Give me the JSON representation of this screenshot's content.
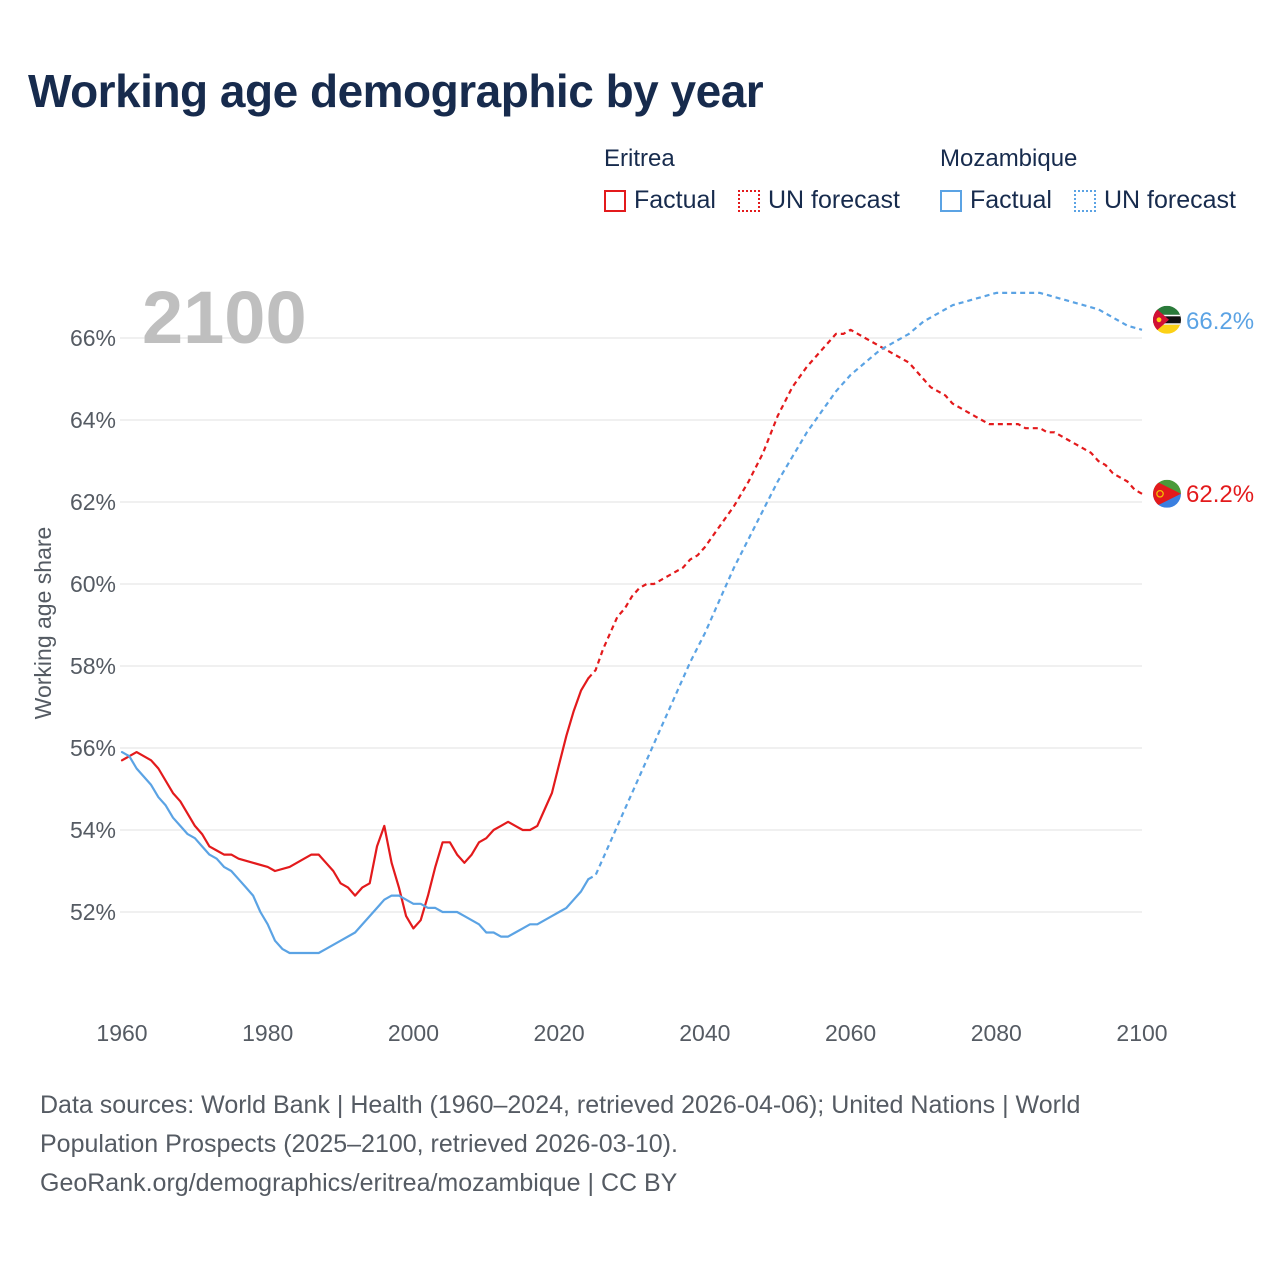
{
  "title": "Working age demographic by year",
  "legend": {
    "groups": [
      {
        "name": "Eritrea",
        "factual_label": "Factual",
        "forecast_label": "UN forecast",
        "color": "#e31a1c"
      },
      {
        "name": "Mozambique",
        "factual_label": "Factual",
        "forecast_label": "UN forecast",
        "color": "#5ba3e4"
      }
    ]
  },
  "year_watermark": "2100",
  "footer": {
    "line1": "Data sources: World Bank | Health (1960–2024, retrieved 2026-04-06); United Nations | World",
    "line2": "Population Prospects (2025–2100, retrieved 2026-03-10).",
    "line3": "GeoRank.org/demographics/eritrea/mozambique | CC BY"
  },
  "colors": {
    "eritrea": "#e31a1c",
    "mozambique": "#5ba3e4",
    "grid": "#e6e6e6",
    "axis_text": "#555b63",
    "watermark": "#bfbfbf"
  },
  "chart_data": {
    "type": "line",
    "title": "Working age demographic by year",
    "xlabel": "",
    "ylabel": "Working age share",
    "xlim": [
      1960,
      2100
    ],
    "ylim": [
      50,
      67.5
    ],
    "x_ticks": [
      1960,
      1980,
      2000,
      2020,
      2040,
      2060,
      2080,
      2100
    ],
    "x_tick_labels": [
      "1960",
      "1980",
      "2000",
      "2020",
      "2040",
      "2060",
      "2080",
      "2100"
    ],
    "y_ticks": [
      52,
      54,
      56,
      58,
      60,
      62,
      64,
      66
    ],
    "y_tick_labels": [
      "52%",
      "54%",
      "56%",
      "58%",
      "60%",
      "62%",
      "64%",
      "66%"
    ],
    "grid": true,
    "series": [
      {
        "name": "Eritrea",
        "segment": "Factual",
        "style": "solid",
        "x": [
          1960,
          1962,
          1964,
          1965,
          1967,
          1968,
          1970,
          1971,
          1972,
          1973,
          1974,
          1975,
          1976,
          1978,
          1980,
          1981,
          1983,
          1985,
          1986,
          1987,
          1988,
          1989,
          1990,
          1991,
          1992,
          1993,
          1994,
          1995,
          1996,
          1997,
          1998,
          1999,
          2000,
          2001,
          2002,
          2003,
          2004,
          2005,
          2006,
          2007,
          2008,
          2009,
          2010,
          2011,
          2012,
          2013,
          2014,
          2015,
          2016,
          2017,
          2018,
          2019,
          2020,
          2021,
          2022,
          2023,
          2024
        ],
        "y": [
          55.7,
          55.9,
          55.7,
          55.5,
          54.9,
          54.7,
          54.1,
          53.9,
          53.6,
          53.5,
          53.4,
          53.4,
          53.3,
          53.2,
          53.1,
          53.0,
          53.1,
          53.3,
          53.4,
          53.4,
          53.2,
          53.0,
          52.7,
          52.6,
          52.4,
          52.6,
          52.7,
          53.6,
          54.1,
          53.2,
          52.6,
          51.9,
          51.6,
          51.8,
          52.4,
          53.1,
          53.7,
          53.7,
          53.4,
          53.2,
          53.4,
          53.7,
          53.8,
          54.0,
          54.1,
          54.2,
          54.1,
          54.0,
          54.0,
          54.1,
          54.5,
          54.9,
          55.6,
          56.3,
          56.9,
          57.4,
          57.7
        ]
      },
      {
        "name": "Eritrea",
        "segment": "UN forecast",
        "style": "dashed",
        "x": [
          2024,
          2025,
          2026,
          2027,
          2028,
          2029,
          2030,
          2031,
          2032,
          2033,
          2034,
          2035,
          2036,
          2037,
          2038,
          2039,
          2040,
          2042,
          2044,
          2046,
          2048,
          2050,
          2052,
          2054,
          2056,
          2058,
          2059,
          2060,
          2061,
          2062,
          2063,
          2064,
          2065,
          2066,
          2067,
          2068,
          2069,
          2070,
          2071,
          2072,
          2073,
          2074,
          2075,
          2076,
          2077,
          2078,
          2079,
          2080,
          2081,
          2082,
          2083,
          2084,
          2085,
          2086,
          2087,
          2088,
          2089,
          2090,
          2091,
          2092,
          2093,
          2094,
          2095,
          2096,
          2097,
          2098,
          2099,
          2100
        ],
        "y": [
          57.7,
          57.9,
          58.4,
          58.8,
          59.2,
          59.4,
          59.7,
          59.9,
          60.0,
          60.0,
          60.1,
          60.2,
          60.3,
          60.4,
          60.6,
          60.7,
          60.9,
          61.4,
          61.9,
          62.5,
          63.2,
          64.1,
          64.8,
          65.3,
          65.7,
          66.1,
          66.1,
          66.2,
          66.1,
          66.0,
          65.9,
          65.8,
          65.7,
          65.6,
          65.5,
          65.4,
          65.2,
          65.0,
          64.8,
          64.7,
          64.6,
          64.4,
          64.3,
          64.2,
          64.1,
          64.0,
          63.9,
          63.9,
          63.9,
          63.9,
          63.9,
          63.8,
          63.8,
          63.8,
          63.7,
          63.7,
          63.6,
          63.5,
          63.4,
          63.3,
          63.2,
          63.0,
          62.9,
          62.7,
          62.6,
          62.5,
          62.3,
          62.2
        ]
      },
      {
        "name": "Mozambique",
        "segment": "Factual",
        "style": "solid",
        "x": [
          1960,
          1961,
          1962,
          1964,
          1965,
          1966,
          1967,
          1968,
          1969,
          1970,
          1971,
          1972,
          1973,
          1974,
          1975,
          1976,
          1977,
          1978,
          1979,
          1980,
          1981,
          1982,
          1983,
          1985,
          1986,
          1987,
          1988,
          1990,
          1992,
          1994,
          1996,
          1997,
          1998,
          1999,
          2000,
          2001,
          2002,
          2003,
          2004,
          2005,
          2006,
          2007,
          2008,
          2009,
          2010,
          2011,
          2012,
          2013,
          2014,
          2015,
          2016,
          2017,
          2018,
          2019,
          2020,
          2021,
          2022,
          2023,
          2024
        ],
        "y": [
          55.9,
          55.8,
          55.5,
          55.1,
          54.8,
          54.6,
          54.3,
          54.1,
          53.9,
          53.8,
          53.6,
          53.4,
          53.3,
          53.1,
          53.0,
          52.8,
          52.6,
          52.4,
          52.0,
          51.7,
          51.3,
          51.1,
          51.0,
          51.0,
          51.0,
          51.0,
          51.1,
          51.3,
          51.5,
          51.9,
          52.3,
          52.4,
          52.4,
          52.3,
          52.2,
          52.2,
          52.1,
          52.1,
          52.0,
          52.0,
          52.0,
          51.9,
          51.8,
          51.7,
          51.5,
          51.5,
          51.4,
          51.4,
          51.5,
          51.6,
          51.7,
          51.7,
          51.8,
          51.9,
          52.0,
          52.1,
          52.3,
          52.5,
          52.8
        ]
      },
      {
        "name": "Mozambique",
        "segment": "UN forecast",
        "style": "dashed",
        "x": [
          2024,
          2025,
          2026,
          2028,
          2030,
          2032,
          2034,
          2036,
          2038,
          2040,
          2042,
          2044,
          2046,
          2048,
          2050,
          2052,
          2054,
          2056,
          2058,
          2060,
          2062,
          2064,
          2066,
          2068,
          2070,
          2072,
          2074,
          2076,
          2078,
          2080,
          2082,
          2084,
          2086,
          2088,
          2090,
          2092,
          2094,
          2096,
          2098,
          2100
        ],
        "y": [
          52.8,
          52.9,
          53.3,
          54.1,
          54.9,
          55.7,
          56.5,
          57.3,
          58.1,
          58.8,
          59.6,
          60.4,
          61.1,
          61.8,
          62.5,
          63.1,
          63.7,
          64.2,
          64.7,
          65.1,
          65.4,
          65.7,
          65.9,
          66.1,
          66.4,
          66.6,
          66.8,
          66.9,
          67.0,
          67.1,
          67.1,
          67.1,
          67.1,
          67.0,
          66.9,
          66.8,
          66.7,
          66.5,
          66.3,
          66.2
        ]
      }
    ],
    "end_labels": [
      {
        "name": "Mozambique",
        "label": "66.2%",
        "value": 66.2
      },
      {
        "name": "Eritrea",
        "label": "62.2%",
        "value": 62.2
      }
    ]
  }
}
